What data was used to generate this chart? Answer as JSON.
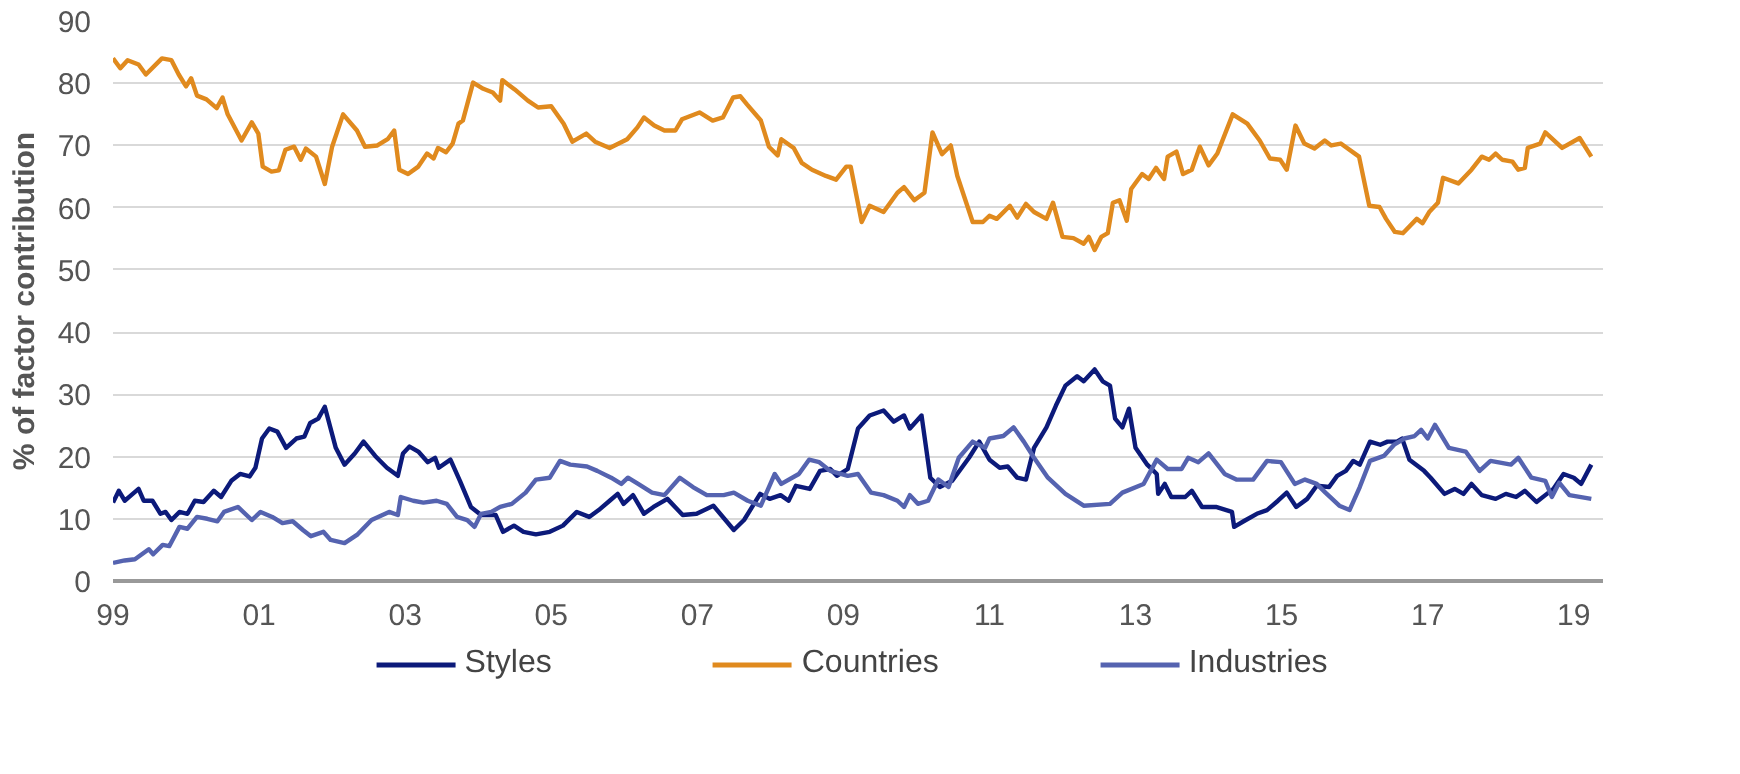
{
  "chart_data": {
    "type": "line",
    "ylabel": "% of factor contribution",
    "xlim": [
      1999,
      2019.4
    ],
    "ylim": [
      0,
      90
    ],
    "xticks": [
      {
        "value": 1999,
        "label": "99"
      },
      {
        "value": 2001,
        "label": "01"
      },
      {
        "value": 2003,
        "label": "03"
      },
      {
        "value": 2005,
        "label": "05"
      },
      {
        "value": 2007,
        "label": "07"
      },
      {
        "value": 2009,
        "label": "09"
      },
      {
        "value": 2011,
        "label": "11"
      },
      {
        "value": 2013,
        "label": "13"
      },
      {
        "value": 2015,
        "label": "15"
      },
      {
        "value": 2017,
        "label": "17"
      },
      {
        "value": 2019,
        "label": "19"
      }
    ],
    "yticks": [
      0,
      10,
      20,
      30,
      40,
      50,
      60,
      70,
      80,
      90
    ],
    "grid": "y",
    "legend": "bottom",
    "marker": "none",
    "line_style": "solid",
    "series": [
      {
        "name": "Styles",
        "color": "#0c1a7a",
        "x": [
          1999.0,
          1999.08,
          1999.16,
          1999.25,
          1999.35,
          1999.42,
          1999.54,
          1999.65,
          1999.72,
          1999.8,
          1999.91,
          2000.02,
          2000.12,
          2000.24,
          2000.38,
          2000.48,
          2000.62,
          2000.74,
          2000.87,
          2000.95,
          2001.04,
          2001.14,
          2001.25,
          2001.37,
          2001.51,
          2001.62,
          2001.7,
          2001.81,
          2001.9,
          2002.05,
          2002.17,
          2002.31,
          2002.43,
          2002.59,
          2002.75,
          2002.9,
          2002.97,
          2003.06,
          2003.18,
          2003.31,
          2003.41,
          2003.46,
          2003.62,
          2003.75,
          2003.9,
          2004.04,
          2004.24,
          2004.34,
          2004.49,
          2004.62,
          2004.79,
          2004.98,
          2005.16,
          2005.35,
          2005.52,
          2005.65,
          2005.8,
          2005.91,
          2005.99,
          2006.12,
          2006.27,
          2006.4,
          2006.59,
          2006.8,
          2006.99,
          2007.22,
          2007.5,
          2007.64,
          2007.86,
          2007.99,
          2008.14,
          2008.25,
          2008.35,
          2008.54,
          2008.68,
          2008.82,
          2008.91,
          2009.06,
          2009.2,
          2009.36,
          2009.55,
          2009.69,
          2009.83,
          2009.91,
          2010.07,
          2010.19,
          2010.32,
          2010.49,
          2010.72,
          2010.86,
          2011.0,
          2011.14,
          2011.25,
          2011.38,
          2011.5,
          2011.61,
          2011.78,
          2011.91,
          2012.04,
          2012.2,
          2012.29,
          2012.44,
          2012.55,
          2012.65,
          2012.72,
          2012.82,
          2012.91,
          2013.0,
          2013.16,
          2013.29,
          2013.31,
          2013.4,
          2013.49,
          2013.68,
          2013.77,
          2013.91,
          2014.1,
          2014.32,
          2014.35,
          2014.48,
          2014.66,
          2014.8,
          2014.95,
          2015.07,
          2015.2,
          2015.35,
          2015.48,
          2015.65,
          2015.76,
          2015.88,
          2015.98,
          2016.07,
          2016.21,
          2016.35,
          2016.45,
          2016.58,
          2016.65,
          2016.75,
          2016.95,
          2017.04,
          2017.23,
          2017.37,
          2017.49,
          2017.6,
          2017.74,
          2017.93,
          2018.07,
          2018.21,
          2018.33,
          2018.49,
          2018.61,
          2018.72,
          2018.86,
          2019.0,
          2019.1,
          2019.24
        ],
        "values": [
          12.6,
          14.5,
          12.9,
          13.8,
          14.8,
          12.9,
          12.9,
          10.8,
          11.1,
          9.8,
          11.1,
          10.8,
          12.9,
          12.7,
          14.5,
          13.5,
          16.1,
          17.2,
          16.8,
          18.2,
          22.9,
          24.5,
          24.0,
          21.4,
          22.9,
          23.2,
          25.4,
          26.1,
          28.0,
          21.4,
          18.7,
          20.5,
          22.4,
          20.1,
          18.2,
          16.9,
          20.5,
          21.6,
          20.8,
          19.1,
          19.8,
          18.2,
          19.5,
          16.1,
          11.9,
          10.6,
          10.6,
          7.9,
          8.9,
          7.9,
          7.5,
          7.9,
          8.9,
          11.1,
          10.3,
          11.4,
          12.9,
          14.0,
          12.4,
          13.8,
          10.8,
          11.9,
          13.2,
          10.6,
          10.8,
          12.1,
          8.2,
          9.8,
          14.0,
          13.2,
          13.8,
          12.9,
          15.3,
          14.8,
          17.7,
          18.0,
          16.9,
          18.0,
          24.5,
          26.6,
          27.4,
          25.6,
          26.6,
          24.5,
          26.6,
          16.6,
          15.1,
          16.1,
          19.8,
          22.4,
          19.5,
          18.2,
          18.4,
          16.6,
          16.3,
          21.4,
          24.7,
          28.2,
          31.4,
          32.9,
          32.1,
          34.0,
          32.1,
          31.4,
          26.1,
          24.7,
          27.7,
          21.4,
          18.7,
          17.2,
          14.0,
          15.6,
          13.5,
          13.5,
          14.5,
          11.9,
          11.9,
          11.1,
          8.7,
          9.6,
          10.8,
          11.4,
          12.9,
          14.2,
          11.9,
          13.2,
          15.3,
          15.1,
          16.9,
          17.7,
          19.3,
          18.7,
          22.4,
          21.9,
          22.4,
          22.4,
          22.9,
          19.5,
          17.7,
          16.6,
          14.0,
          14.8,
          14.0,
          15.6,
          13.8,
          13.2,
          14.0,
          13.5,
          14.5,
          12.7,
          13.8,
          14.8,
          17.2,
          16.6,
          15.6,
          18.7
        ]
      },
      {
        "name": "Countries",
        "color": "#e08a1e",
        "x": [
          1999.0,
          1999.1,
          1999.2,
          1999.35,
          1999.45,
          1999.67,
          1999.8,
          1999.9,
          2000.0,
          2000.07,
          2000.15,
          2000.28,
          2000.42,
          2000.5,
          2000.57,
          2000.76,
          2000.9,
          2000.99,
          2001.05,
          2001.17,
          2001.27,
          2001.36,
          2001.48,
          2001.57,
          2001.64,
          2001.78,
          2001.9,
          2002.0,
          2002.15,
          2002.34,
          2002.45,
          2002.62,
          2002.76,
          2002.85,
          2002.92,
          2003.04,
          2003.18,
          2003.3,
          2003.39,
          2003.45,
          2003.56,
          2003.65,
          2003.73,
          2003.79,
          2003.93,
          2004.07,
          2004.2,
          2004.3,
          2004.33,
          2004.5,
          2004.68,
          2004.82,
          2005.0,
          2005.17,
          2005.29,
          2005.48,
          2005.6,
          2005.8,
          2006.04,
          2006.18,
          2006.27,
          2006.41,
          2006.55,
          2006.7,
          2006.79,
          2007.03,
          2007.21,
          2007.35,
          2007.49,
          2007.59,
          2007.68,
          2007.87,
          2007.98,
          2008.1,
          2008.15,
          2008.32,
          2008.43,
          2008.57,
          2008.76,
          2008.9,
          2009.04,
          2009.1,
          2009.25,
          2009.36,
          2009.55,
          2009.74,
          2009.83,
          2009.97,
          2010.11,
          2010.22,
          2010.35,
          2010.47,
          2010.56,
          2010.77,
          2010.91,
          2011.0,
          2011.1,
          2011.28,
          2011.38,
          2011.5,
          2011.61,
          2011.78,
          2011.87,
          2012.0,
          2012.15,
          2012.29,
          2012.36,
          2012.44,
          2012.53,
          2012.62,
          2012.69,
          2012.78,
          2012.88,
          2012.94,
          2013.09,
          2013.18,
          2013.28,
          2013.39,
          2013.44,
          2013.56,
          2013.65,
          2013.77,
          2013.88,
          2014.0,
          2014.12,
          2014.33,
          2014.53,
          2014.7,
          2014.84,
          2014.98,
          2015.07,
          2015.19,
          2015.31,
          2015.45,
          2015.59,
          2015.68,
          2015.81,
          2016.06,
          2016.2,
          2016.34,
          2016.43,
          2016.55,
          2016.66,
          2016.85,
          2016.93,
          2017.02,
          2017.14,
          2017.21,
          2017.42,
          2017.6,
          2017.74,
          2017.84,
          2017.93,
          2018.02,
          2018.16,
          2018.24,
          2018.33,
          2018.37,
          2018.54,
          2018.61,
          2018.84,
          2019.08,
          2019.24
        ],
        "values": [
          84.0,
          82.4,
          83.7,
          83.0,
          81.4,
          84.0,
          83.7,
          81.4,
          79.5,
          80.8,
          78.0,
          77.4,
          76.0,
          77.7,
          75.0,
          70.8,
          73.7,
          71.9,
          66.6,
          65.8,
          66.0,
          69.3,
          69.8,
          67.7,
          69.5,
          68.2,
          63.8,
          69.8,
          75.0,
          72.4,
          69.8,
          70.0,
          71.0,
          72.4,
          66.1,
          65.4,
          66.6,
          68.7,
          67.9,
          69.6,
          68.9,
          70.3,
          73.5,
          74.0,
          80.1,
          79.1,
          78.5,
          77.2,
          80.5,
          79.0,
          77.2,
          76.1,
          76.3,
          73.5,
          70.6,
          71.9,
          70.6,
          69.6,
          71.0,
          72.9,
          74.5,
          73.2,
          72.4,
          72.4,
          74.2,
          75.3,
          74.0,
          74.5,
          77.7,
          77.9,
          76.6,
          74.0,
          69.8,
          68.4,
          71.0,
          69.6,
          67.2,
          66.1,
          65.1,
          64.5,
          66.6,
          66.6,
          57.7,
          60.3,
          59.3,
          62.4,
          63.3,
          61.2,
          62.4,
          72.1,
          68.6,
          70.0,
          65.1,
          57.7,
          57.7,
          58.7,
          58.2,
          60.3,
          58.4,
          60.6,
          59.3,
          58.2,
          60.8,
          55.3,
          55.1,
          54.2,
          55.3,
          53.2,
          55.3,
          55.9,
          60.8,
          61.2,
          57.9,
          63.0,
          65.4,
          64.6,
          66.4,
          64.6,
          68.2,
          69.0,
          65.4,
          66.1,
          69.8,
          66.8,
          68.7,
          75.0,
          73.5,
          70.8,
          67.9,
          67.7,
          66.1,
          73.2,
          70.3,
          69.5,
          70.8,
          70.0,
          70.3,
          68.2,
          60.3,
          60.1,
          58.2,
          56.1,
          55.9,
          58.2,
          57.5,
          59.3,
          60.8,
          64.8,
          63.9,
          66.1,
          68.2,
          67.7,
          68.7,
          67.7,
          67.4,
          66.1,
          66.4,
          69.6,
          70.3,
          72.1,
          69.6,
          71.2,
          68.2
        ]
      },
      {
        "name": "Industries",
        "color": "#5563b0",
        "x": [
          1999.0,
          1999.16,
          1999.3,
          1999.49,
          1999.55,
          1999.68,
          1999.77,
          1999.91,
          2000.02,
          2000.15,
          2000.29,
          2000.43,
          2000.52,
          2000.71,
          2000.9,
          2001.02,
          2001.18,
          2001.32,
          2001.46,
          2001.6,
          2001.71,
          2001.88,
          2001.98,
          2002.17,
          2002.35,
          2002.54,
          2002.78,
          2002.9,
          2002.94,
          2003.11,
          2003.25,
          2003.43,
          2003.57,
          2003.71,
          2003.85,
          2003.95,
          2004.04,
          2004.18,
          2004.3,
          2004.46,
          2004.65,
          2004.79,
          2004.98,
          2005.12,
          2005.26,
          2005.49,
          2005.63,
          2005.82,
          2005.96,
          2006.05,
          2006.19,
          2006.38,
          2006.55,
          2006.76,
          2006.94,
          2007.13,
          2007.36,
          2007.5,
          2007.69,
          2007.87,
          2008.06,
          2008.15,
          2008.39,
          2008.53,
          2008.67,
          2008.82,
          2009.06,
          2009.2,
          2009.38,
          2009.55,
          2009.74,
          2009.83,
          2009.91,
          2010.02,
          2010.16,
          2010.3,
          2010.44,
          2010.58,
          2010.77,
          2010.94,
          2011.0,
          2011.19,
          2011.33,
          2011.47,
          2011.61,
          2011.8,
          2012.04,
          2012.29,
          2012.65,
          2012.82,
          2013.11,
          2013.29,
          2013.44,
          2013.63,
          2013.72,
          2013.86,
          2014.0,
          2014.22,
          2014.38,
          2014.61,
          2014.8,
          2014.99,
          2015.18,
          2015.32,
          2015.48,
          2015.6,
          2015.79,
          2015.93,
          2016.07,
          2016.21,
          2016.4,
          2016.54,
          2016.68,
          2016.82,
          2016.91,
          2017.0,
          2017.1,
          2017.29,
          2017.52,
          2017.71,
          2017.86,
          2018.14,
          2018.24,
          2018.42,
          2018.61,
          2018.7,
          2018.8,
          2018.94,
          2019.24
        ],
        "values": [
          2.9,
          3.3,
          3.5,
          5.1,
          4.3,
          5.8,
          5.6,
          8.7,
          8.4,
          10.3,
          10.0,
          9.6,
          11.1,
          11.9,
          9.8,
          11.1,
          10.3,
          9.3,
          9.6,
          8.2,
          7.2,
          7.9,
          6.6,
          6.1,
          7.5,
          9.8,
          11.1,
          10.6,
          13.5,
          12.9,
          12.6,
          12.9,
          12.4,
          10.3,
          9.8,
          8.7,
          10.8,
          11.1,
          11.9,
          12.4,
          14.2,
          16.3,
          16.6,
          19.3,
          18.7,
          18.4,
          17.7,
          16.6,
          15.6,
          16.6,
          15.6,
          14.2,
          13.8,
          16.6,
          15.1,
          13.8,
          13.8,
          14.2,
          12.9,
          12.1,
          17.2,
          15.6,
          17.2,
          19.5,
          19.1,
          17.7,
          16.9,
          17.2,
          14.2,
          13.8,
          12.9,
          11.9,
          13.8,
          12.4,
          12.9,
          16.3,
          15.1,
          19.8,
          22.4,
          21.4,
          22.9,
          23.3,
          24.7,
          22.4,
          19.8,
          16.6,
          14.0,
          12.1,
          12.4,
          14.2,
          15.6,
          19.5,
          18.0,
          18.0,
          19.8,
          19.1,
          20.5,
          17.2,
          16.3,
          16.3,
          19.3,
          19.1,
          15.6,
          16.3,
          15.6,
          14.2,
          12.1,
          11.4,
          15.1,
          19.3,
          20.1,
          21.9,
          22.9,
          23.3,
          24.3,
          22.9,
          25.1,
          21.4,
          20.8,
          17.7,
          19.3,
          18.7,
          19.8,
          16.6,
          16.1,
          13.5,
          15.8,
          13.8,
          13.2
        ]
      }
    ]
  }
}
